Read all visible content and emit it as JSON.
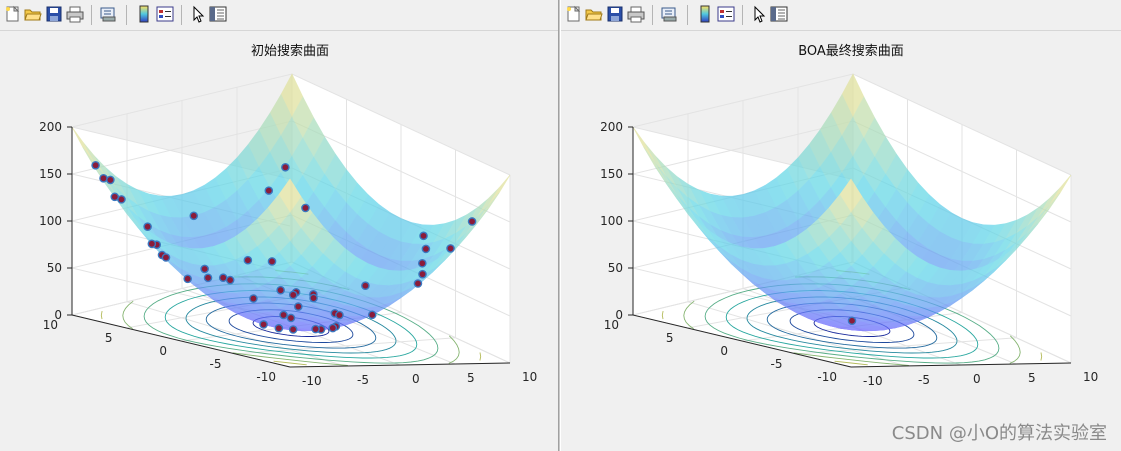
{
  "figures": [
    {
      "title": "初始搜索曲面",
      "z_ticks": [
        "200",
        "150",
        "100",
        "50",
        "0"
      ],
      "x_ticks": [
        "10",
        "5",
        "0",
        "-5",
        "-10"
      ],
      "y_ticks": [
        "10",
        "5",
        "0",
        "-5",
        "-10"
      ],
      "points_shown": true
    },
    {
      "title": "BOA最终搜索曲面",
      "z_ticks": [
        "200",
        "150",
        "100",
        "50",
        "0"
      ],
      "x_ticks": [
        "10",
        "5",
        "0",
        "-5",
        "-10"
      ],
      "y_ticks": [
        "10",
        "5",
        "0",
        "-5",
        "-10"
      ],
      "points_shown": true
    }
  ],
  "toolbar": {
    "icons": [
      "new-file-icon",
      "open-folder-icon",
      "save-icon",
      "print-icon",
      "print-preview-icon",
      "colorbar-icon",
      "legend-icon",
      "pointer-icon",
      "property-editor-icon"
    ]
  },
  "colors": {
    "surface_low": "#6a5cff",
    "surface_mid": "#5fd7e8",
    "surface_high": "#ffe38a",
    "point_fill": "#8b1c3a",
    "contour_low": "#1a2a9c",
    "contour_high": "#e0c040"
  },
  "watermark": "CSDN @小O的算法实验室"
}
